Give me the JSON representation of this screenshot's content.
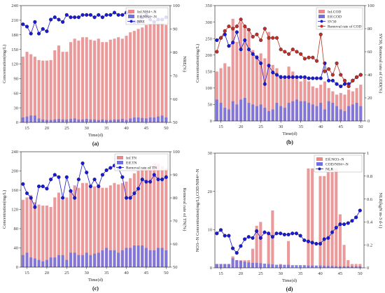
{
  "chart_data": [
    {
      "type": "bar",
      "panel_label": "(a)",
      "xlabel": "Time(d)",
      "ylabel": "Concentration(mg/L)",
      "ylabel_right": "NRE(%)",
      "x": [
        14,
        15,
        16,
        17,
        18,
        19,
        20,
        21,
        22,
        23,
        24,
        25,
        26,
        27,
        28,
        29,
        30,
        31,
        32,
        33,
        34,
        35,
        36,
        37,
        38,
        39,
        40,
        41,
        42,
        43,
        44,
        45,
        46,
        47,
        48,
        49,
        50
      ],
      "xticks": [
        15,
        20,
        25,
        30,
        35,
        40,
        45,
        50
      ],
      "xlim": [
        13.5,
        51
      ],
      "ylim": [
        0,
        240
      ],
      "yticks": [
        0,
        30,
        60,
        90,
        120,
        150,
        180,
        210,
        240
      ],
      "ylim_right": [
        50,
        100
      ],
      "yticks_right": [
        50,
        60,
        70,
        80,
        90,
        100
      ],
      "legend_position": "top-right",
      "series": [
        {
          "name": "Inf.NH4+-N",
          "kind": "bar",
          "axis": "left",
          "color": "#e8888a",
          "values": [
            135,
            145,
            140,
            135,
            128,
            127,
            127,
            128,
            148,
            158,
            145,
            145,
            165,
            172,
            168,
            175,
            175,
            170,
            168,
            172,
            165,
            165,
            170,
            172,
            175,
            172,
            178,
            185,
            188,
            192,
            195,
            200,
            202,
            205,
            205,
            205,
            200
          ]
        },
        {
          "name": "Eff.NH4+-N",
          "kind": "bar",
          "axis": "left",
          "color": "#7070e0",
          "values": [
            10,
            12,
            14,
            14,
            8,
            6,
            5,
            5,
            6,
            7,
            6,
            6,
            7,
            8,
            6,
            6,
            7,
            6,
            6,
            5,
            6,
            5,
            5,
            6,
            6,
            7,
            5,
            8,
            10,
            10,
            9,
            8,
            10,
            10,
            12,
            14,
            10
          ]
        },
        {
          "name": "NRE",
          "kind": "line",
          "axis": "right",
          "color": "#1a1ad0",
          "values": [
            92,
            91,
            88,
            93,
            88,
            90,
            89,
            94,
            95,
            94,
            93,
            96,
            95,
            95,
            95,
            96,
            96,
            96,
            95,
            96,
            95,
            96,
            96,
            97,
            96,
            96,
            97,
            96,
            93,
            93,
            95,
            96,
            94,
            93,
            94,
            94,
            95
          ]
        }
      ]
    },
    {
      "type": "bar",
      "panel_label": "(b)",
      "xlabel": "Time(d)",
      "ylabel": "Concentration(mg/L)",
      "ylabel_right": "SV30, Removal rate of COD(%)",
      "x": [
        14,
        15,
        16,
        17,
        18,
        19,
        20,
        21,
        22,
        23,
        24,
        25,
        26,
        27,
        28,
        29,
        30,
        31,
        32,
        33,
        34,
        35,
        36,
        37,
        38,
        39,
        40,
        41,
        42,
        43,
        44,
        45,
        46,
        47,
        48,
        49,
        50
      ],
      "xticks": [
        15,
        20,
        25,
        30,
        35,
        40,
        45,
        50
      ],
      "xlim": [
        13.5,
        51
      ],
      "ylim": [
        0,
        350
      ],
      "yticks": [
        0,
        50,
        100,
        150,
        200,
        250,
        300,
        350
      ],
      "ylim_right": [
        0,
        100
      ],
      "yticks_right": [
        0,
        20,
        40,
        60,
        80,
        100
      ],
      "legend_position": "top-right",
      "series": [
        {
          "name": "Inf.COD",
          "kind": "bar",
          "axis": "left",
          "color": "#e8888a",
          "values": [
            150,
            160,
            175,
            165,
            310,
            240,
            300,
            285,
            270,
            215,
            200,
            205,
            190,
            270,
            170,
            160,
            140,
            130,
            165,
            150,
            130,
            120,
            130,
            120,
            105,
            100,
            110,
            120,
            100,
            90,
            80,
            85,
            80,
            95,
            90,
            100,
            110
          ]
        },
        {
          "name": "Eff.COD",
          "kind": "bar",
          "axis": "left",
          "color": "#7070e0",
          "values": [
            65,
            55,
            40,
            35,
            60,
            50,
            65,
            70,
            55,
            50,
            45,
            50,
            40,
            30,
            35,
            55,
            45,
            40,
            55,
            60,
            65,
            60,
            60,
            55,
            50,
            45,
            55,
            35,
            60,
            55,
            45,
            35,
            30,
            45,
            50,
            55,
            45
          ]
        },
        {
          "name": "SV30",
          "kind": "line",
          "axis": "right",
          "color": "#1a1ad0",
          "values": [
            70,
            72,
            75,
            65,
            68,
            77,
            62,
            70,
            62,
            58,
            55,
            50,
            32,
            48,
            42,
            40,
            38,
            38,
            38,
            38,
            38,
            38,
            38,
            37,
            37,
            37,
            37,
            50,
            35,
            35,
            32,
            30,
            32,
            32,
            35,
            38,
            40
          ]
        },
        {
          "name": "Removal rate of COD",
          "kind": "line",
          "axis": "right",
          "color": "#c03020",
          "values": [
            60,
            72,
            78,
            82,
            80,
            82,
            88,
            82,
            79,
            73,
            75,
            70,
            80,
            72,
            72,
            72,
            62,
            60,
            58,
            62,
            60,
            58,
            54,
            55,
            55,
            52,
            75,
            43,
            45,
            40,
            50,
            40,
            35,
            30,
            35,
            38,
            40
          ]
        }
      ]
    },
    {
      "type": "bar",
      "panel_label": "(c)",
      "xlabel": "Time(d)",
      "ylabel": "Concentration(mg/L)",
      "ylabel_right": "Removal rate of TN(%)",
      "x": [
        14,
        15,
        16,
        17,
        18,
        19,
        20,
        21,
        22,
        23,
        24,
        25,
        26,
        27,
        28,
        29,
        30,
        31,
        32,
        33,
        34,
        35,
        36,
        37,
        38,
        39,
        40,
        41,
        42,
        43,
        44,
        45,
        46,
        47,
        48,
        49,
        50
      ],
      "xticks": [
        15,
        20,
        25,
        30,
        35,
        40,
        45,
        50
      ],
      "xlim": [
        13.5,
        51
      ],
      "ylim": [
        0,
        240
      ],
      "yticks": [
        0,
        40,
        80,
        120,
        160,
        200,
        240
      ],
      "ylim_right": [
        50,
        100
      ],
      "yticks_right": [
        50,
        60,
        70,
        80,
        90,
        100
      ],
      "legend_position": "top-right",
      "series": [
        {
          "name": "Inf.TN",
          "kind": "bar",
          "axis": "left",
          "color": "#e8888a",
          "values": [
            140,
            145,
            150,
            135,
            130,
            128,
            128,
            125,
            145,
            155,
            140,
            145,
            160,
            170,
            165,
            175,
            175,
            170,
            168,
            172,
            165,
            165,
            170,
            175,
            172,
            175,
            178,
            185,
            195,
            200,
            205,
            205,
            210,
            215,
            215,
            210,
            205
          ]
        },
        {
          "name": "Eff.TN",
          "kind": "bar",
          "axis": "left",
          "color": "#7070e0",
          "values": [
            25,
            30,
            20,
            18,
            15,
            12,
            15,
            20,
            20,
            25,
            25,
            15,
            30,
            30,
            25,
            25,
            30,
            25,
            28,
            30,
            35,
            40,
            35,
            35,
            30,
            35,
            40,
            40,
            45,
            45,
            45,
            40,
            35,
            35,
            40,
            40,
            35
          ]
        },
        {
          "name": "Removal rate of TN",
          "kind": "line",
          "axis": "right",
          "color": "#1a1ad0",
          "values": [
            86,
            82,
            80,
            76,
            85,
            85,
            84,
            88,
            90,
            89,
            80,
            89,
            83,
            80,
            88,
            95,
            91,
            85,
            88,
            85,
            90,
            92,
            93,
            94,
            93,
            89,
            80,
            80,
            82,
            84,
            88,
            87,
            87,
            90,
            88,
            88,
            89
          ]
        }
      ]
    },
    {
      "type": "bar",
      "panel_label": "(d)",
      "xlabel": "Time(d)",
      "ylabel": "NO3--N Concentration(mg/L),COD/NH4+-N",
      "ylabel_right": "NLR(kgN m-3 d-1)",
      "x": [
        14,
        15,
        16,
        17,
        18,
        19,
        20,
        21,
        22,
        23,
        24,
        25,
        26,
        27,
        28,
        29,
        30,
        31,
        32,
        33,
        34,
        35,
        36,
        37,
        38,
        39,
        40,
        41,
        42,
        43,
        44,
        45,
        46,
        47,
        48,
        49,
        50
      ],
      "xticks": [
        15,
        20,
        25,
        30,
        35,
        40,
        45,
        50
      ],
      "xlim": [
        13.5,
        51
      ],
      "ylim": [
        0,
        30
      ],
      "yticks": [
        0,
        10,
        20,
        30
      ],
      "ylim_right": [
        0,
        1.0
      ],
      "yticks_right": [
        0,
        0.2,
        0.4,
        0.6,
        0.8,
        1.0
      ],
      "legend_position": "top-right",
      "series": [
        {
          "name": "Eff.NO3--N",
          "kind": "bar",
          "axis": "left",
          "color": "#e8888a",
          "values": [
            1,
            1,
            1,
            1,
            3,
            2,
            2,
            2,
            2,
            5,
            11,
            12,
            0,
            9,
            15,
            0,
            1,
            0,
            7,
            0,
            0,
            0,
            0,
            26,
            26,
            0,
            24,
            24,
            25,
            25,
            26,
            14,
            6,
            2,
            1,
            1,
            1
          ]
        },
        {
          "name": "COD/NH4+-N",
          "kind": "bar",
          "axis": "left",
          "color": "#7070e0",
          "values": [
            1,
            1,
            1,
            1,
            2.5,
            2,
            1.8,
            1.6,
            1.4,
            1.3,
            1.3,
            1.2,
            1.1,
            1.0,
            0.9,
            0.8,
            0.8,
            0.8,
            0.8,
            0.7,
            0.7,
            0.7,
            0.7,
            0.6,
            0.6,
            0.6,
            0.6,
            0.5,
            0.5,
            0.5,
            0.4,
            0.4,
            0.4,
            0.4,
            0.4,
            0.4,
            0.4
          ]
        },
        {
          "name": "NLR",
          "kind": "line",
          "axis": "right",
          "color": "#1a1ad0",
          "values": [
            0.3,
            0.33,
            0.28,
            0.28,
            0.17,
            0.13,
            0.19,
            0.25,
            0.27,
            0.26,
            0.32,
            0.26,
            0.31,
            0.3,
            0.27,
            0.3,
            0.3,
            0.29,
            0.29,
            0.3,
            0.3,
            0.28,
            0.24,
            0.23,
            0.22,
            0.21,
            0.21,
            0.25,
            0.26,
            0.31,
            0.35,
            0.38,
            0.38,
            0.39,
            0.41,
            0.44,
            0.5
          ]
        }
      ]
    }
  ]
}
